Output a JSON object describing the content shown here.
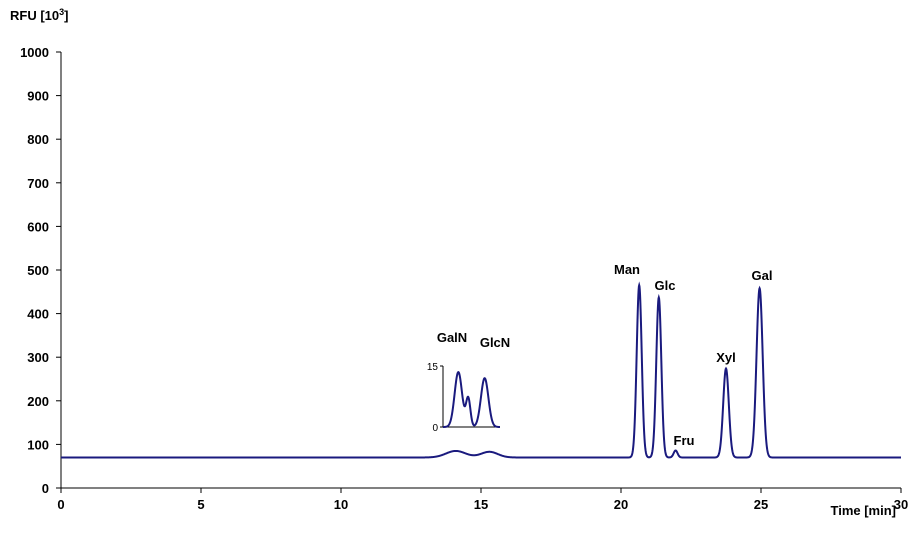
{
  "chart_data": {
    "type": "line",
    "ylabel": "RFU [10",
    "ylabel_sup": "3",
    "ylabel_end": "]",
    "xlabel": "Time [min]",
    "xlim": [
      0,
      30
    ],
    "ylim": [
      0,
      1000
    ],
    "xticks": [
      0,
      5,
      10,
      15,
      20,
      25,
      30
    ],
    "yticks": [
      0,
      100,
      200,
      300,
      400,
      500,
      600,
      700,
      800,
      900,
      1000
    ],
    "grid": false,
    "line_color": "#1a1a7e",
    "baseline": 70,
    "peaks": [
      {
        "name": "GalN",
        "x": 14.1,
        "height": 85
      },
      {
        "name": "GlcN",
        "x": 15.3,
        "height": 83
      },
      {
        "name": "Man",
        "x": 20.65,
        "height": 465
      },
      {
        "name": "Glc",
        "x": 21.35,
        "height": 437
      },
      {
        "name": "Fru",
        "x": 21.95,
        "height": 86
      },
      {
        "name": "Xyl",
        "x": 23.75,
        "height": 274
      },
      {
        "name": "Gal",
        "x": 24.95,
        "height": 458
      }
    ],
    "inset": {
      "yticks": [
        0,
        15
      ],
      "peaks": [
        {
          "name": "GalN",
          "x": 14.1,
          "height": 13.5
        },
        {
          "name": "GlcN",
          "x": 15.3,
          "height": 12
        }
      ]
    }
  }
}
